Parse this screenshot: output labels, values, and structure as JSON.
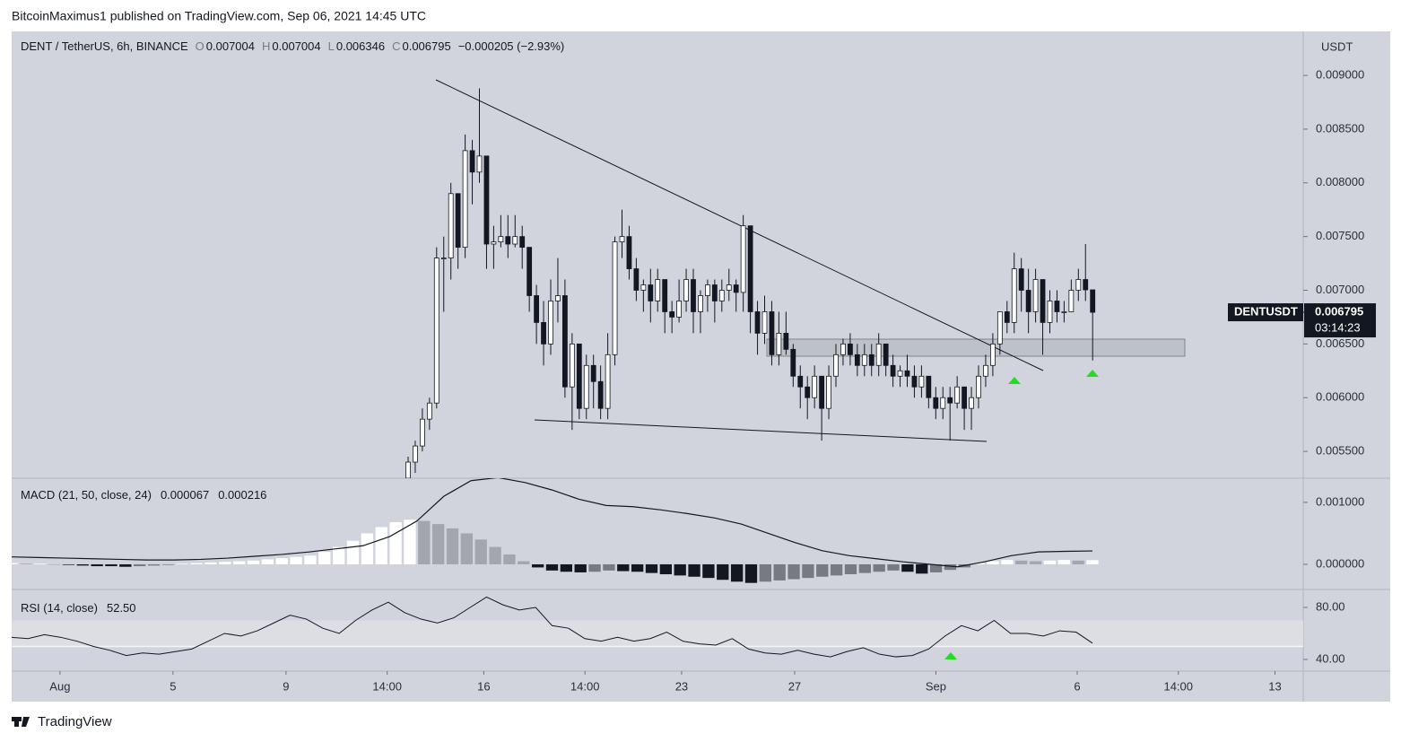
{
  "header": {
    "publisher": "BitcoinMaximus1 published on TradingView.com, Sep 06, 2021 14:45 UTC"
  },
  "footer": {
    "brand": "TradingView"
  },
  "chart_data": [
    {
      "type": "candlestick",
      "title": "DENT / TetherUS, 6h, BINANCE",
      "currency": "USDT",
      "ohlc": [
        {
          "label": "O",
          "value": 0.007004
        },
        {
          "label": "H",
          "value": 0.007004
        },
        {
          "label": "L",
          "value": 0.006346
        },
        {
          "label": "C",
          "value": 0.006795
        }
      ],
      "change": "−0.000205 (−2.93%)",
      "price_label": {
        "symbol": "DENTUSDT",
        "value": 0.006795,
        "countdown": "03:14:23"
      },
      "up_color": "#ffffff",
      "down_color": "#131722",
      "ylim": [
        0.00525,
        0.00941
      ],
      "yticks": [
        {
          "value": 0.0055,
          "label": "0.005500"
        },
        {
          "value": 0.006,
          "label": "0.006000"
        },
        {
          "value": 0.0065,
          "label": "0.006500"
        },
        {
          "value": 0.007,
          "label": "0.007000"
        },
        {
          "value": 0.0075,
          "label": "0.007500"
        },
        {
          "value": 0.008,
          "label": "0.008000"
        },
        {
          "value": 0.0085,
          "label": "0.008500"
        },
        {
          "value": 0.009,
          "label": "0.009000"
        }
      ],
      "xlim": [
        -1.71,
        44
      ],
      "xticks": [
        {
          "value": 0,
          "label": "Aug"
        },
        {
          "value": 4,
          "label": "5"
        },
        {
          "value": 8,
          "label": "9"
        },
        {
          "value": 11.58,
          "label": "14:00"
        },
        {
          "value": 15,
          "label": "16"
        },
        {
          "value": 18.58,
          "label": "14:00"
        },
        {
          "value": 22,
          "label": "23"
        },
        {
          "value": 26,
          "label": "27"
        },
        {
          "value": 31,
          "label": "Sep"
        },
        {
          "value": 36,
          "label": "6"
        },
        {
          "value": 39.58,
          "label": "14:00"
        },
        {
          "value": 43,
          "label": "13"
        }
      ],
      "grid": false,
      "candles": [
        [
          0.00525,
          0.00545,
          0.0052,
          0.0054
        ],
        [
          0.0054,
          0.0056,
          0.0053,
          0.00555
        ],
        [
          0.00555,
          0.0059,
          0.0055,
          0.0058
        ],
        [
          0.0058,
          0.006,
          0.0057,
          0.00595
        ],
        [
          0.00595,
          0.0074,
          0.0059,
          0.0073
        ],
        [
          0.0073,
          0.0075,
          0.0068,
          0.0073
        ],
        [
          0.0073,
          0.008,
          0.0071,
          0.0079
        ],
        [
          0.0079,
          0.0079,
          0.0072,
          0.0074
        ],
        [
          0.0074,
          0.00845,
          0.0073,
          0.0083
        ],
        [
          0.0083,
          0.0084,
          0.0078,
          0.0081
        ],
        [
          0.0081,
          0.00888,
          0.008,
          0.00825
        ],
        [
          0.00825,
          0.00825,
          0.0072,
          0.00743
        ],
        [
          0.00743,
          0.0076,
          0.0072,
          0.00745
        ],
        [
          0.00745,
          0.0077,
          0.0074,
          0.0075
        ],
        [
          0.0075,
          0.0077,
          0.0073,
          0.00743
        ],
        [
          0.00743,
          0.0077,
          0.0074,
          0.0075
        ],
        [
          0.0075,
          0.0076,
          0.0072,
          0.0074
        ],
        [
          0.0074,
          0.0074,
          0.0068,
          0.00695
        ],
        [
          0.00695,
          0.00705,
          0.0065,
          0.0067
        ],
        [
          0.0067,
          0.0069,
          0.0063,
          0.0065
        ],
        [
          0.0065,
          0.0071,
          0.0064,
          0.0069
        ],
        [
          0.0069,
          0.0073,
          0.0067,
          0.00695
        ],
        [
          0.00695,
          0.0071,
          0.006,
          0.0061
        ],
        [
          0.0061,
          0.0066,
          0.0057,
          0.0065
        ],
        [
          0.0065,
          0.0065,
          0.0058,
          0.0059
        ],
        [
          0.0059,
          0.0064,
          0.0058,
          0.0063
        ],
        [
          0.0063,
          0.0064,
          0.0059,
          0.00615
        ],
        [
          0.00615,
          0.0063,
          0.0058,
          0.0059
        ],
        [
          0.0059,
          0.0066,
          0.0058,
          0.0064
        ],
        [
          0.0064,
          0.0075,
          0.0063,
          0.00745
        ],
        [
          0.00745,
          0.00775,
          0.0073,
          0.0075
        ],
        [
          0.0075,
          0.0076,
          0.0071,
          0.0072
        ],
        [
          0.0072,
          0.0073,
          0.0069,
          0.007
        ],
        [
          0.007,
          0.0071,
          0.0068,
          0.00705
        ],
        [
          0.00705,
          0.0072,
          0.0067,
          0.0069
        ],
        [
          0.0069,
          0.0072,
          0.0068,
          0.0071
        ],
        [
          0.0071,
          0.0071,
          0.0066,
          0.0068
        ],
        [
          0.0068,
          0.0069,
          0.0066,
          0.00675
        ],
        [
          0.00675,
          0.0071,
          0.0067,
          0.0069
        ],
        [
          0.0069,
          0.0072,
          0.0068,
          0.0071
        ],
        [
          0.0071,
          0.0072,
          0.0066,
          0.0068
        ],
        [
          0.0068,
          0.007,
          0.0066,
          0.00695
        ],
        [
          0.00695,
          0.0071,
          0.0068,
          0.00705
        ],
        [
          0.00705,
          0.0071,
          0.0067,
          0.0069
        ],
        [
          0.0069,
          0.0071,
          0.0068,
          0.007
        ],
        [
          0.007,
          0.0072,
          0.0069,
          0.00705
        ],
        [
          0.00705,
          0.0071,
          0.0068,
          0.00698
        ],
        [
          0.00698,
          0.0077,
          0.0068,
          0.0076
        ],
        [
          0.0076,
          0.0076,
          0.0066,
          0.0068
        ],
        [
          0.0068,
          0.0069,
          0.0064,
          0.0066
        ],
        [
          0.0066,
          0.00695,
          0.0065,
          0.0068
        ],
        [
          0.0068,
          0.0069,
          0.0063,
          0.0064
        ],
        [
          0.0064,
          0.0068,
          0.0063,
          0.0066
        ],
        [
          0.0066,
          0.0068,
          0.0064,
          0.00645
        ],
        [
          0.00645,
          0.0065,
          0.0061,
          0.0062
        ],
        [
          0.0062,
          0.0063,
          0.0059,
          0.0061
        ],
        [
          0.0061,
          0.0062,
          0.0058,
          0.006
        ],
        [
          0.006,
          0.0063,
          0.0059,
          0.0062
        ],
        [
          0.0062,
          0.0062,
          0.0056,
          0.0059
        ],
        [
          0.0059,
          0.0063,
          0.0058,
          0.0062
        ],
        [
          0.0062,
          0.0065,
          0.0061,
          0.0064
        ],
        [
          0.0064,
          0.00655,
          0.0063,
          0.0065
        ],
        [
          0.0065,
          0.0066,
          0.0063,
          0.0064
        ],
        [
          0.0064,
          0.0065,
          0.0062,
          0.0063
        ],
        [
          0.0063,
          0.0065,
          0.0062,
          0.0064
        ],
        [
          0.0064,
          0.0065,
          0.0062,
          0.0063
        ],
        [
          0.0063,
          0.0066,
          0.0062,
          0.0065
        ],
        [
          0.0065,
          0.0065,
          0.0062,
          0.0063
        ],
        [
          0.0063,
          0.0064,
          0.0061,
          0.0062
        ],
        [
          0.0062,
          0.0063,
          0.0061,
          0.00625
        ],
        [
          0.00625,
          0.0064,
          0.0061,
          0.0062
        ],
        [
          0.0062,
          0.0063,
          0.006,
          0.0061
        ],
        [
          0.0061,
          0.0063,
          0.006,
          0.0062
        ],
        [
          0.0062,
          0.0062,
          0.0059,
          0.006
        ],
        [
          0.006,
          0.0061,
          0.0058,
          0.0059
        ],
        [
          0.0059,
          0.0061,
          0.0058,
          0.006
        ],
        [
          0.006,
          0.0061,
          0.0056,
          0.00595
        ],
        [
          0.00595,
          0.0062,
          0.0059,
          0.0061
        ],
        [
          0.0061,
          0.0061,
          0.0057,
          0.0059
        ],
        [
          0.0059,
          0.0061,
          0.0057,
          0.006
        ],
        [
          0.006,
          0.0063,
          0.0059,
          0.0062
        ],
        [
          0.0062,
          0.0064,
          0.0061,
          0.0063
        ],
        [
          0.0063,
          0.0066,
          0.0062,
          0.0065
        ],
        [
          0.0065,
          0.0068,
          0.0064,
          0.0068
        ],
        [
          0.0068,
          0.0069,
          0.0066,
          0.0067
        ],
        [
          0.0067,
          0.00735,
          0.0066,
          0.0072
        ],
        [
          0.0072,
          0.0073,
          0.0068,
          0.007
        ],
        [
          0.007,
          0.0072,
          0.0066,
          0.0068
        ],
        [
          0.0068,
          0.0072,
          0.0067,
          0.0071
        ],
        [
          0.0071,
          0.0071,
          0.0064,
          0.0067
        ],
        [
          0.0067,
          0.007,
          0.0066,
          0.0069
        ],
        [
          0.0069,
          0.007,
          0.0067,
          0.0068
        ],
        [
          0.0068,
          0.0069,
          0.0067,
          0.0068
        ],
        [
          0.0068,
          0.0071,
          0.0068,
          0.007
        ],
        [
          0.007,
          0.0072,
          0.0069,
          0.0071
        ],
        [
          0.0071,
          0.00743,
          0.0069,
          0.007004
        ],
        [
          0.007004,
          0.007004,
          0.006346,
          0.006795
        ]
      ]
    },
    {
      "type": "macd",
      "title": "MACD (21, 50, close, 24)",
      "legend_values": [
        6.7e-05,
        0.000216
      ],
      "ylim": [
        -0.000406,
        0.00139
      ],
      "yticks": [
        {
          "value": 0,
          "label": "0.000000"
        },
        {
          "value": 0.001,
          "label": "0.001000"
        }
      ],
      "line_color": "#131722",
      "line": [
        0.00012,
        0.00011,
        0.0001,
        9e-05,
        8e-05,
        7e-05,
        7e-05,
        8e-05,
        0.0001,
        0.00013,
        0.00016,
        0.0002,
        0.00025,
        0.0003,
        0.00045,
        0.0007,
        0.0011,
        0.00135,
        0.0014,
        0.00132,
        0.0012,
        0.00105,
        0.00095,
        0.00093,
        0.00088,
        0.00082,
        0.00075,
        0.00065,
        0.0005,
        0.00035,
        0.00022,
        0.00014,
        9e-05,
        4e-05,
        0.0,
        -4e-05,
        4e-05,
        0.00014,
        0.0002,
        0.00021,
        0.000216
      ],
      "histogram": [
        2e-05,
        1e-05,
        1e-05,
        0,
        -1e-05,
        -2e-05,
        -3e-05,
        -3e-05,
        -4e-05,
        -3e-05,
        -2e-05,
        -1e-05,
        1e-05,
        2e-05,
        3e-05,
        4e-05,
        5e-05,
        6e-05,
        8e-05,
        0.0001,
        0.00012,
        0.00014,
        0.0002,
        0.00028,
        0.00038,
        0.0005,
        0.0006,
        0.00068,
        0.00072,
        0.0007,
        0.00065,
        0.00058,
        0.0005,
        0.0004,
        0.00028,
        0.00016,
        5e-05,
        -5e-05,
        -0.0001,
        -0.00012,
        -0.00013,
        -0.00012,
        -0.0001,
        -0.00011,
        -0.00012,
        -0.00014,
        -0.00016,
        -0.00018,
        -0.0002,
        -0.00022,
        -0.00025,
        -0.00028,
        -0.0003,
        -0.00028,
        -0.00026,
        -0.00024,
        -0.00022,
        -0.0002,
        -0.00018,
        -0.00016,
        -0.00014,
        -0.00012,
        -0.0001,
        -0.00012,
        -0.00015,
        -0.00013,
        -9e-05,
        -5e-05,
        2e-05,
        5e-05,
        7e-05,
        6e-05,
        5e-05,
        6e-05,
        7e-05,
        6e-05,
        6.7e-05
      ]
    },
    {
      "type": "rsi",
      "title": "RSI (14, close)",
      "legend_value": {
        "value": 52.5,
        "label": "52.50"
      },
      "ylim": [
        31,
        93.8
      ],
      "yticks": [
        {
          "value": 40,
          "label": "40.00"
        },
        {
          "value": 80,
          "label": "80.00"
        }
      ],
      "band": [
        50,
        70
      ],
      "line_color": "#131722",
      "values": [
        57,
        56,
        59,
        57,
        54,
        50,
        47,
        43,
        45,
        44,
        46,
        48,
        54,
        60,
        58,
        62,
        68,
        74,
        71,
        64,
        60,
        70,
        78,
        84,
        76,
        71,
        68,
        72,
        80,
        88,
        82,
        78,
        80,
        66,
        64,
        56,
        54,
        57,
        54,
        56,
        61,
        54,
        52,
        51,
        56,
        48,
        45,
        44,
        47,
        44,
        42,
        46,
        49,
        44,
        42,
        43,
        48,
        58,
        66,
        62,
        70,
        60,
        60,
        58,
        62,
        61,
        52.5
      ]
    }
  ]
}
